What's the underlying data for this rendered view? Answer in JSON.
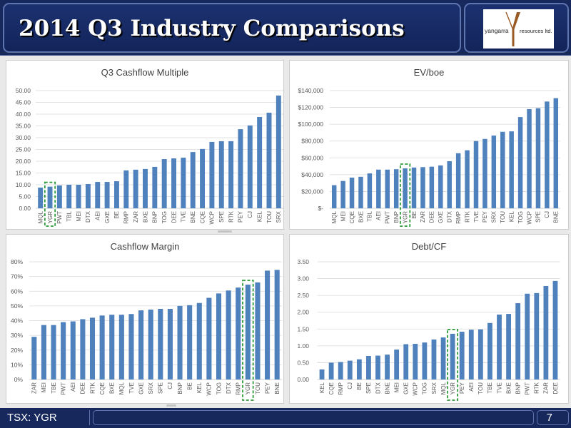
{
  "slide": {
    "title": "2014 Q3 Industry Comparisons",
    "logo": {
      "name_left": "yangarra",
      "mark": "Y",
      "name_right": "resources ltd."
    },
    "footer": {
      "ticker": "TSX: YGR",
      "page_number": "7"
    }
  },
  "colors": {
    "header_bg": "#16285c",
    "frame_border": "#5f75b0",
    "bar": "#4f81bd",
    "gridline": "#d9d9d9",
    "axis": "#bfbfbf",
    "highlight": "#2e9a3a",
    "logo_mark": "#9a5a26"
  },
  "chart_data": [
    {
      "type": "bar",
      "title": "Q3 Cashflow Multiple",
      "categories": [
        "MQL",
        "YGR",
        "PWT",
        "TBL",
        "MEI",
        "DTX",
        "AEI",
        "GXE",
        "BE",
        "RMP",
        "ZAR",
        "BXE",
        "BNP",
        "TOG",
        "DEE",
        "TVE",
        "BNE",
        "CQE",
        "WCP",
        "SPE",
        "RTK",
        "PEY",
        "CJ",
        "KEL",
        "TOU",
        "SRX"
      ],
      "values": [
        8.8,
        9.2,
        9.7,
        10.0,
        10.0,
        10.3,
        11.2,
        11.2,
        11.5,
        16.1,
        16.4,
        16.7,
        17.6,
        20.9,
        21.2,
        21.5,
        23.9,
        25.2,
        28.2,
        28.5,
        28.5,
        33.6,
        35.2,
        38.8,
        40.6,
        47.9
      ],
      "ylim": [
        0,
        50
      ],
      "yticks": [
        "0.00",
        "5.00",
        "10.00",
        "15.00",
        "20.00",
        "25.00",
        "30.00",
        "35.00",
        "40.00",
        "45.00",
        "50.00"
      ],
      "grid": true,
      "legend": false,
      "highlighted_category": "YGR"
    },
    {
      "type": "bar",
      "title": "EV/boe",
      "categories": [
        "MQL",
        "MEI",
        "CQE",
        "BXE",
        "TBL",
        "AEI",
        "PWT",
        "BNP",
        "YGR",
        "BE",
        "ZAR",
        "DEE",
        "GXE",
        "DTX",
        "RMP",
        "RTK",
        "TVE",
        "PEY",
        "SRX",
        "TOU",
        "KEL",
        "TOG",
        "WCP",
        "SPE",
        "CJ",
        "BNE"
      ],
      "values": [
        27500,
        32500,
        36500,
        37500,
        41500,
        46000,
        46000,
        46500,
        47500,
        48500,
        49000,
        49500,
        51000,
        56000,
        65500,
        69000,
        80000,
        82500,
        86500,
        91000,
        91500,
        108500,
        118000,
        119000,
        127000,
        131000
      ],
      "ylim": [
        0,
        140000
      ],
      "yticks": [
        "$-",
        "$20,000",
        "$40,000",
        "$60,000",
        "$80,000",
        "$100,000",
        "$120,000",
        "$140,000"
      ],
      "grid": true,
      "legend": false,
      "highlighted_category": "YGR"
    },
    {
      "type": "bar",
      "title": "Cashflow Margin",
      "categories": [
        "ZAR",
        "MEI",
        "TBE",
        "PWT",
        "AEI",
        "DEE",
        "RTK",
        "CQE",
        "BXE",
        "MQL",
        "TVE",
        "GXE",
        "SRX",
        "SPE",
        "CJ",
        "BNP",
        "BE",
        "KEL",
        "WCP",
        "TOG",
        "DTX",
        "RMP",
        "YGR",
        "TOU",
        "PEY",
        "BNE"
      ],
      "values": [
        29,
        37,
        37,
        39,
        39.5,
        41,
        42,
        43.5,
        44,
        44,
        44.5,
        47,
        47.5,
        48,
        48,
        50,
        50.5,
        52,
        55.5,
        58.5,
        60.5,
        62.5,
        64.5,
        66,
        74,
        74.5
      ],
      "ylim": [
        0,
        80
      ],
      "yticks": [
        "0%",
        "10%",
        "20%",
        "30%",
        "40%",
        "50%",
        "60%",
        "70%",
        "80%"
      ],
      "grid": true,
      "legend": false,
      "highlighted_category": "YGR"
    },
    {
      "type": "bar",
      "title": "Debt/CF",
      "categories": [
        "KEL",
        "CQE",
        "RMP",
        "CJ",
        "BE",
        "SPE",
        "DTX",
        "BNE",
        "MEI",
        "GXE",
        "WCP",
        "TOG",
        "SRX",
        "MQL",
        "YGR",
        "PEY",
        "AEI",
        "TOU",
        "TBE",
        "TVE",
        "BXE",
        "BNP",
        "PWT",
        "RTK",
        "ZAR",
        "DEE"
      ],
      "values": [
        0.3,
        0.5,
        0.52,
        0.56,
        0.6,
        0.7,
        0.71,
        0.74,
        0.89,
        1.05,
        1.06,
        1.1,
        1.19,
        1.25,
        1.36,
        1.42,
        1.48,
        1.49,
        1.68,
        1.93,
        1.95,
        2.27,
        2.55,
        2.57,
        2.78,
        2.93
      ],
      "ylim": [
        0,
        3.5
      ],
      "yticks": [
        "0.00",
        "0.50",
        "1.00",
        "1.50",
        "2.00",
        "2.50",
        "3.00",
        "3.50"
      ],
      "grid": true,
      "legend": false,
      "highlighted_category": "YGR"
    }
  ]
}
